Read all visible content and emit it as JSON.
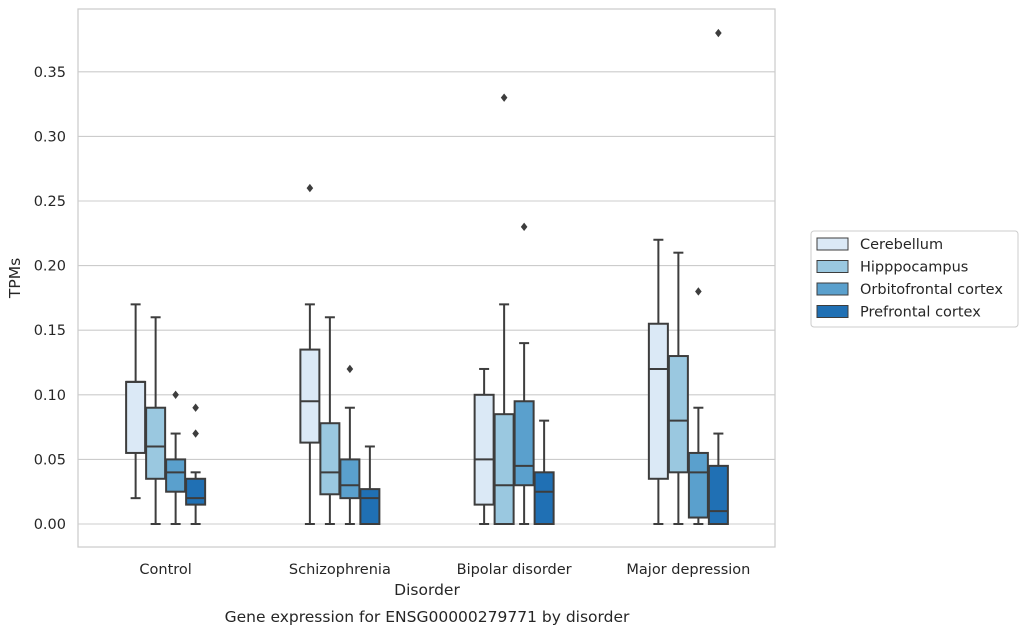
{
  "chart_data": {
    "type": "box",
    "xlabel": "Disorder",
    "ylabel": "TPMs",
    "caption": "Gene expression for ENSG00000279771 by disorder",
    "ylim": [
      -0.018,
      0.398
    ],
    "yticks": [
      "0.00",
      "0.05",
      "0.10",
      "0.15",
      "0.20",
      "0.25",
      "0.30",
      "0.35"
    ],
    "grid": "horizontal",
    "legend_position": "right",
    "categories": [
      "Control",
      "Schizophrenia",
      "Bipolar disorder",
      "Major depression"
    ],
    "series": [
      {
        "name": "Cerebellum",
        "color": "#dbe9f6",
        "boxes": [
          {
            "whislo": 0.02,
            "q1": 0.055,
            "med": 0.11,
            "q3": 0.11,
            "whishi": 0.17,
            "fliers": []
          },
          {
            "whislo": 0.0,
            "q1": 0.063,
            "med": 0.095,
            "q3": 0.135,
            "whishi": 0.17,
            "fliers": [
              0.26
            ]
          },
          {
            "whislo": 0.0,
            "q1": 0.015,
            "med": 0.05,
            "q3": 0.1,
            "whishi": 0.12,
            "fliers": []
          },
          {
            "whislo": 0.0,
            "q1": 0.035,
            "med": 0.12,
            "q3": 0.155,
            "whishi": 0.22,
            "fliers": []
          }
        ]
      },
      {
        "name": "Hipppocampus",
        "color": "#9ac8e0",
        "boxes": [
          {
            "whislo": 0.0,
            "q1": 0.035,
            "med": 0.06,
            "q3": 0.09,
            "whishi": 0.16,
            "fliers": []
          },
          {
            "whislo": 0.0,
            "q1": 0.023,
            "med": 0.04,
            "q3": 0.078,
            "whishi": 0.16,
            "fliers": []
          },
          {
            "whislo": 0.0,
            "q1": 0.0,
            "med": 0.03,
            "q3": 0.085,
            "whishi": 0.17,
            "fliers": [
              0.33
            ]
          },
          {
            "whislo": 0.0,
            "q1": 0.04,
            "med": 0.08,
            "q3": 0.13,
            "whishi": 0.21,
            "fliers": []
          }
        ]
      },
      {
        "name": "Orbitofrontal cortex",
        "color": "#5aa0cd",
        "boxes": [
          {
            "whislo": 0.0,
            "q1": 0.025,
            "med": 0.04,
            "q3": 0.05,
            "whishi": 0.07,
            "fliers": [
              0.1
            ]
          },
          {
            "whislo": 0.0,
            "q1": 0.02,
            "med": 0.03,
            "q3": 0.05,
            "whishi": 0.09,
            "fliers": [
              0.12
            ]
          },
          {
            "whislo": 0.0,
            "q1": 0.03,
            "med": 0.045,
            "q3": 0.095,
            "whishi": 0.14,
            "fliers": [
              0.23
            ]
          },
          {
            "whislo": 0.0,
            "q1": 0.005,
            "med": 0.04,
            "q3": 0.055,
            "whishi": 0.09,
            "fliers": [
              0.18
            ]
          }
        ]
      },
      {
        "name": "Prefrontal cortex",
        "color": "#2070b4",
        "boxes": [
          {
            "whislo": 0.0,
            "q1": 0.015,
            "med": 0.02,
            "q3": 0.035,
            "whishi": 0.04,
            "fliers": [
              0.07,
              0.09
            ]
          },
          {
            "whislo": 0.0,
            "q1": 0.0,
            "med": 0.02,
            "q3": 0.027,
            "whishi": 0.06,
            "fliers": []
          },
          {
            "whislo": 0.0,
            "q1": 0.0,
            "med": 0.025,
            "q3": 0.04,
            "whishi": 0.08,
            "fliers": []
          },
          {
            "whislo": 0.0,
            "q1": 0.0,
            "med": 0.01,
            "q3": 0.045,
            "whishi": 0.07,
            "fliers": [
              0.38
            ]
          }
        ]
      }
    ]
  }
}
